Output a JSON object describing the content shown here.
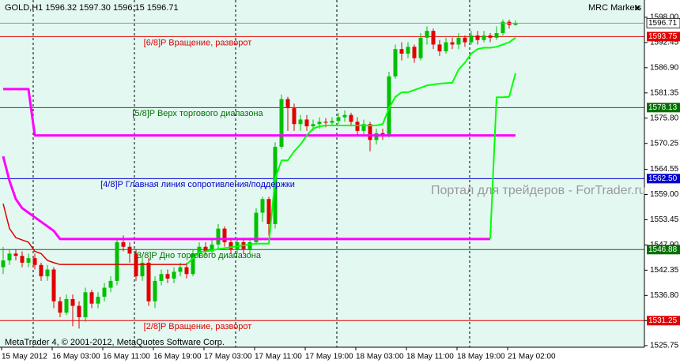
{
  "chart_data": {
    "type": "candlestick",
    "header": "GOLD,H1  1596.32 1597.30 1596.15 1596.71",
    "broker": "MRC Markets",
    "close_button": "×",
    "watermark": "Портал для трейдеров - ForTrader.ru",
    "footer": "MetaTrader 4, © 2001-2012, MetaQuotes Software Corp.",
    "categories": [
      "15 May 2012",
      null,
      null,
      null,
      null,
      null,
      null,
      null,
      "16 May 03:00",
      null,
      null,
      null,
      null,
      null,
      null,
      null,
      "16 May 11:00",
      null,
      null,
      null,
      null,
      null,
      null,
      null,
      "16 May 19:00",
      null,
      null,
      null,
      null,
      null,
      null,
      null,
      "17 May 03:00",
      null,
      null,
      null,
      null,
      null,
      null,
      null,
      "17 May 11:00",
      null,
      null,
      null,
      null,
      null,
      null,
      null,
      "17 May 19:00",
      null,
      null,
      null,
      null,
      null,
      null,
      null,
      "18 May 03:00",
      null,
      null,
      null,
      null,
      null,
      null,
      null,
      "18 May 11:00",
      null,
      null,
      null,
      null,
      null,
      null,
      null,
      "18 May 19:00",
      null,
      null,
      null,
      null,
      null,
      null,
      null,
      "21 May 02:00",
      null
    ],
    "open": [
      1543,
      1544.5,
      1546,
      1545.5,
      1544,
      1545,
      1543.5,
      1541,
      1542.5,
      1535.5,
      1533,
      1536,
      1534.5,
      1532,
      1537.5,
      1535,
      1536.5,
      1538.5,
      1540,
      1548.5,
      1547.5,
      1546,
      1541,
      1544,
      1535.5,
      1540,
      1541.5,
      1540.5,
      1542,
      1543,
      1541.5,
      1546,
      1547.5,
      1546.5,
      1548,
      1551.5,
      1548.5,
      1547,
      1548.5,
      1547,
      1548.5,
      1555,
      1558,
      1552.5,
      1569.5,
      1580,
      1578,
      1574.5,
      1575.5,
      1574,
      1574.5,
      1575,
      1574.8,
      1575.2,
      1576,
      1576.5,
      1575,
      1573,
      1574.5,
      1571,
      1572.5,
      1572,
      1585,
      1591,
      1590,
      1591.5,
      1589,
      1593.5,
      1595,
      1592,
      1590.5,
      1592.5,
      1592,
      1593.5,
      1592.5,
      1594,
      1593,
      1594,
      1593.5,
      1594.5,
      1597,
      1596.32
    ],
    "high": [
      1547.5,
      1547,
      1547,
      1546.5,
      1546,
      1546,
      1544,
      1543.5,
      1543,
      1536.5,
      1537,
      1537,
      1535.5,
      1538.5,
      1538,
      1537.5,
      1539.5,
      1541,
      1549.5,
      1550,
      1548.5,
      1547,
      1545,
      1545,
      1541,
      1542.5,
      1542.5,
      1543,
      1544,
      1544,
      1547,
      1548.5,
      1548.5,
      1549,
      1552.5,
      1552,
      1549.5,
      1549.5,
      1549.5,
      1549.5,
      1556,
      1558.5,
      1558.5,
      1570.5,
      1581,
      1580.5,
      1579,
      1576.5,
      1576.5,
      1575.5,
      1576,
      1575.8,
      1576,
      1577,
      1577.5,
      1577,
      1576,
      1575.5,
      1575,
      1573.5,
      1573.5,
      1586,
      1592,
      1592.5,
      1592.5,
      1592,
      1594.5,
      1596,
      1595.5,
      1593,
      1593.5,
      1593.5,
      1594.5,
      1594,
      1595,
      1595,
      1595,
      1594.5,
      1596,
      1597.5,
      1597.5,
      1597.3
    ],
    "low": [
      1541.5,
      1543.5,
      1544.5,
      1543,
      1543,
      1542.5,
      1540,
      1540,
      1534,
      1532,
      1532.5,
      1530,
      1529.5,
      1531,
      1534,
      1534,
      1535.5,
      1537.5,
      1539,
      1546.5,
      1544,
      1540,
      1540,
      1534.5,
      1534,
      1539,
      1539.5,
      1539.5,
      1541,
      1540.5,
      1541,
      1545,
      1545.5,
      1545.5,
      1547,
      1547.5,
      1546,
      1546,
      1546,
      1546,
      1548,
      1553,
      1550,
      1551.5,
      1569,
      1573,
      1573,
      1573,
      1573,
      1573,
      1573.5,
      1573.8,
      1574,
      1574.5,
      1575,
      1574,
      1572,
      1572,
      1568.5,
      1570,
      1571,
      1571.5,
      1584.5,
      1588.5,
      1589,
      1588,
      1588.5,
      1592,
      1591,
      1589.5,
      1590,
      1591,
      1591,
      1591.5,
      1592,
      1592,
      1592.5,
      1592.5,
      1593,
      1594,
      1595.5,
      1596.15
    ],
    "close": [
      1544.5,
      1546,
      1545.5,
      1544,
      1545,
      1543.5,
      1541,
      1542.5,
      1535.5,
      1533,
      1536,
      1534.5,
      1532,
      1537.5,
      1535,
      1536.5,
      1538.5,
      1540,
      1548.5,
      1547.5,
      1546,
      1541,
      1544,
      1535.5,
      1540,
      1541.5,
      1540.5,
      1542,
      1543,
      1541.5,
      1546,
      1547.5,
      1546.5,
      1548,
      1551.5,
      1548.5,
      1547,
      1548.5,
      1547,
      1548.5,
      1555,
      1558,
      1552.5,
      1569.5,
      1580,
      1578,
      1574.5,
      1575.5,
      1574,
      1574.5,
      1575,
      1574.8,
      1575.2,
      1576,
      1576.5,
      1575,
      1573,
      1574.5,
      1571,
      1572.5,
      1572,
      1585,
      1591,
      1590,
      1591.5,
      1589,
      1593.5,
      1595,
      1592,
      1590.5,
      1592.5,
      1592,
      1593.5,
      1592.5,
      1594,
      1593,
      1594,
      1593.5,
      1594.5,
      1597,
      1596.32,
      1596.71
    ],
    "up_color": "#00c000",
    "down_color": "#e00000",
    "series": [
      {
        "color": "#ff00ff",
        "width": 3,
        "values": [
          1582.2,
          1582.2,
          1582.2,
          1582.2,
          1582.2,
          1572,
          1572,
          1572,
          1572,
          1572,
          1572,
          1572,
          1572,
          1572,
          1572,
          1572,
          1572,
          1572,
          1572,
          1572,
          1572,
          1572,
          1572,
          1572,
          1572,
          1572,
          1572,
          1572,
          1572,
          1572,
          1572,
          1572,
          1572,
          1572,
          1572,
          1572,
          1572,
          1572,
          1572,
          1572,
          1572,
          1572,
          1572,
          1572,
          1572,
          1572,
          1572,
          1572,
          1572,
          1572,
          1572,
          1572,
          1572,
          1572,
          1572,
          1572,
          1572,
          1572,
          1572,
          1572,
          1572,
          1572,
          1572,
          1572,
          1572,
          1572,
          1572,
          1572,
          1572,
          1572,
          1572,
          1572,
          1572,
          1572,
          1572,
          1572,
          1572,
          1572,
          1572,
          1572,
          1572,
          1572
        ]
      },
      {
        "color": "#ff00ff",
        "width": 3,
        "values": [
          1567.4,
          1562,
          1558,
          1556,
          1555,
          1554,
          1553,
          1552,
          1551,
          1549.2,
          1549.2,
          1549.2,
          1549.2,
          1549.2,
          1549.2,
          1549.2,
          1549.2,
          1549.2,
          1549.2,
          1549.2,
          1549.2,
          1549.2,
          1549.2,
          1549.2,
          1549.2,
          1549.2,
          1549.2,
          1549.2,
          1549.2,
          1549.2,
          1549.2,
          1549.2,
          1549.2,
          1549.2,
          1549.2,
          1549.2,
          1549.2,
          1549.2,
          1549.2,
          1549.2,
          1549.2,
          1549.2,
          1549.2,
          1549.2,
          1549.2,
          1549.2,
          1549.2,
          1549.2,
          1549.2,
          1549.2,
          1549.2,
          1549.2,
          1549.2,
          1549.2,
          1549.2,
          1549.2,
          1549.2,
          1549.2,
          1549.2,
          1549.2,
          1549.2,
          1549.2,
          1549.2,
          1549.2,
          1549.2,
          1549.2,
          1549.2,
          1549.2,
          1549.2,
          1549.2,
          1549.2,
          1549.2,
          1549.2,
          1549.2,
          1549.2,
          1549.2,
          1549.2,
          1549.2,
          null,
          null,
          null,
          null
        ]
      },
      {
        "color": "#e00000",
        "width": 1.5,
        "values": [
          1557,
          1551.5,
          1549.5,
          1549,
          1548.5,
          1546.5,
          1546,
          1544.5,
          1544,
          1543.6,
          1543.6,
          1543.6,
          1543.6,
          1543.6,
          1543.6,
          1543.6,
          1543.6,
          1543.6,
          1543.6,
          1543.6,
          1543.6,
          1543.6,
          1543.6,
          1543.6,
          1543.6,
          1543.6,
          1543.6,
          1543.6,
          1543.6,
          1543.6,
          null,
          null,
          null,
          null,
          null,
          null,
          null,
          null,
          null,
          null,
          null,
          null,
          null,
          null,
          null,
          null,
          null,
          null,
          null,
          null,
          null,
          null,
          null,
          null,
          null,
          null,
          null,
          null,
          null,
          null,
          null,
          null,
          null,
          null,
          null,
          null,
          null,
          null,
          null,
          null,
          null,
          null,
          null,
          null,
          null,
          null,
          null,
          null,
          null,
          null,
          null,
          null
        ]
      },
      {
        "color": "#00ff00",
        "width": 2,
        "values": [
          null,
          null,
          null,
          null,
          null,
          null,
          null,
          null,
          null,
          null,
          null,
          null,
          null,
          null,
          null,
          null,
          null,
          null,
          null,
          null,
          null,
          null,
          null,
          null,
          null,
          null,
          null,
          null,
          null,
          1543.6,
          1545,
          1546.3,
          1546.5,
          1546.7,
          1547,
          1547.2,
          1547.4,
          1547.6,
          1547.8,
          1548,
          1548.2,
          1548.2,
          1548.2,
          1562.5,
          1566.5,
          1566.5,
          1568.5,
          1570,
          1572,
          1573.5,
          1574,
          1574.2,
          1574.2,
          1574.2,
          1574.2,
          1574.2,
          1574.2,
          1574.2,
          1574.2,
          1574.2,
          1574.5,
          1578,
          1580.5,
          1581.5,
          1581.5,
          1582,
          1582.5,
          1583,
          1583.2,
          1583.4,
          1583.5,
          1583.6,
          1586.5,
          1588,
          1590,
          1591,
          1591.3,
          1591.3,
          1591.5,
          1592,
          1592.5,
          1593.5
        ]
      },
      {
        "color": "#00ff00",
        "width": 2,
        "values": [
          null,
          null,
          null,
          null,
          null,
          null,
          null,
          null,
          null,
          null,
          null,
          null,
          null,
          null,
          null,
          null,
          null,
          null,
          null,
          null,
          null,
          null,
          null,
          null,
          null,
          null,
          null,
          null,
          null,
          null,
          null,
          null,
          null,
          null,
          null,
          null,
          null,
          null,
          null,
          null,
          null,
          null,
          null,
          null,
          null,
          null,
          null,
          null,
          null,
          null,
          null,
          null,
          null,
          null,
          null,
          null,
          null,
          null,
          null,
          null,
          null,
          null,
          null,
          null,
          null,
          null,
          null,
          null,
          null,
          null,
          null,
          null,
          null,
          null,
          null,
          null,
          null,
          1549.2,
          1580.4,
          1580.4,
          1580.5,
          1585.7
        ]
      }
    ],
    "levels": [
      {
        "value": 1593.75,
        "text": "[6/8]P Вращение, разворот",
        "color": "#e00000"
      },
      {
        "value": 1578.13,
        "text": "[5/8]P Верх торгового диапазона",
        "color": "#007000"
      },
      {
        "value": 1562.5,
        "value_label": "1562.50",
        "text": "[4/8]P Главная линия сопротивления/поддержки",
        "color": "#0000d0"
      },
      {
        "value": 1546.88,
        "text": "[3/8]P Дно торгового диапазона",
        "color": "#007000"
      },
      {
        "value": 1531.25,
        "text": "[2/8]P Вращение, разворот",
        "color": "#e00000"
      }
    ],
    "ylim": [
      1525.4,
      1601.8
    ],
    "yticks": [
      {
        "value": 1598,
        "label": "1598.00"
      },
      1592.45,
      {
        "value": 1586.9,
        "label": "1586.90"
      },
      1581.35,
      {
        "value": 1575.8,
        "label": "1575.80"
      },
      1570.25,
      1564.55,
      {
        "value": 1559,
        "label": "1559.00"
      },
      1553.45,
      {
        "value": 1547.9,
        "label": "1547.90"
      },
      1542.35,
      {
        "value": 1536.8,
        "label": "1536.80"
      },
      1531.25,
      1525.75
    ],
    "grid": false
  }
}
